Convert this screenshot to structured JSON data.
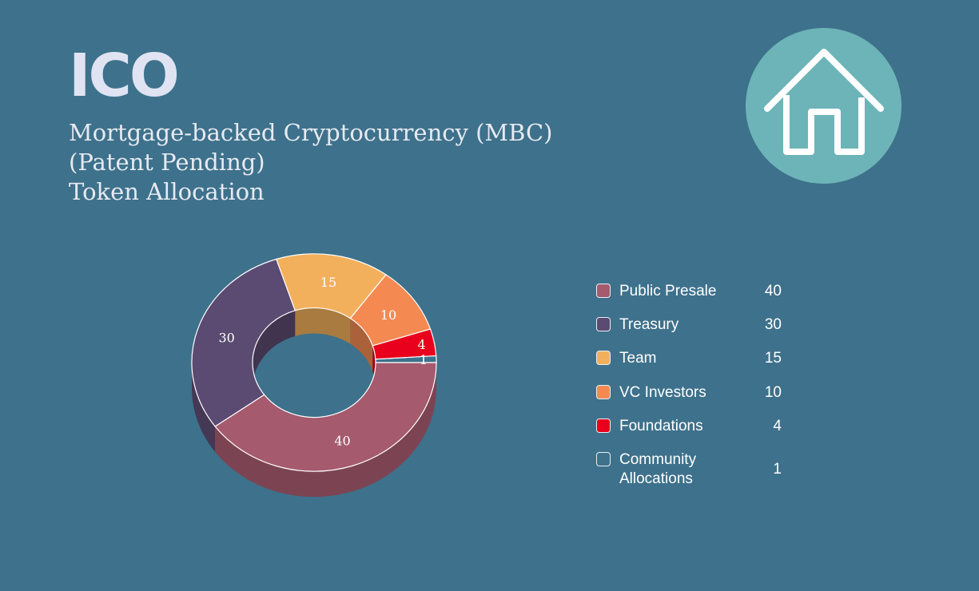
{
  "header": {
    "logo_text": "ICO",
    "subtitle_lines": [
      "Mortgage-backed Cryptocurrency (MBC)",
      "(Patent Pending)",
      "Token Allocation"
    ]
  },
  "icons": {
    "home": "home-icon"
  },
  "colors": {
    "background": "#3e718b",
    "badge": "#6db4b8"
  },
  "chart_data": {
    "type": "pie",
    "variant": "3d-donut",
    "labels": [
      "Public Presale",
      "Treasury",
      "Team",
      "VC Investors",
      "Foundations",
      "Community Allocations"
    ],
    "values": [
      40,
      30,
      15,
      10,
      4,
      1
    ],
    "colors": [
      "#a55a6e",
      "#5b4a71",
      "#f2b05c",
      "#f48a52",
      "#e8001c",
      "#3e718b"
    ],
    "data_labels": true,
    "legend_position": "right"
  },
  "legend": {
    "items": [
      {
        "label": "Public Presale",
        "value": "40",
        "color": "#a55a6e"
      },
      {
        "label": "Treasury",
        "value": "30",
        "color": "#5b4a71"
      },
      {
        "label": "Team",
        "value": "15",
        "color": "#f2b05c"
      },
      {
        "label": "VC Investors",
        "value": "10",
        "color": "#f48a52"
      },
      {
        "label": "Foundations",
        "value": "4",
        "color": "#e8001c"
      },
      {
        "label": "Community Allocations",
        "value": "1",
        "color": "#3e718b"
      }
    ]
  }
}
